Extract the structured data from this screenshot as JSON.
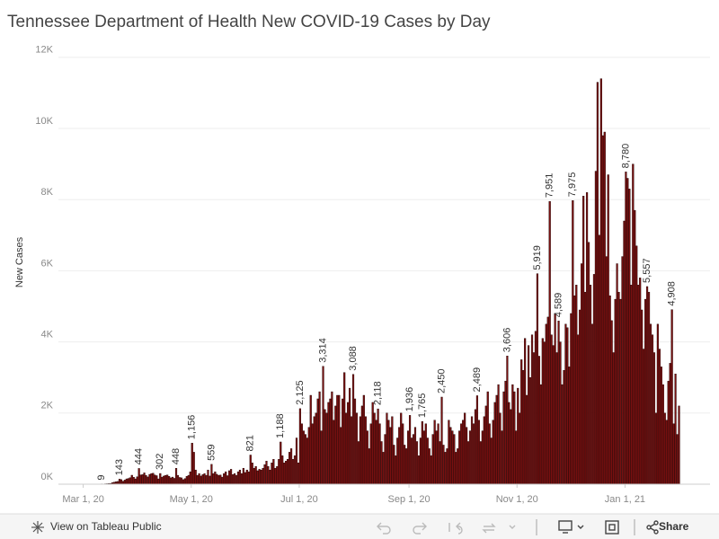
{
  "chart_data": {
    "type": "bar",
    "title": "Tennessee Department of Health New COVID-19 Cases by Day",
    "y_label": "New Cases",
    "color": "#7a1010",
    "x": [
      "2020-03-11",
      "2020-03-12",
      "2020-03-13",
      "2020-03-14",
      "2020-03-15",
      "2020-03-16",
      "2020-03-17",
      "2020-03-18",
      "2020-03-19",
      "2020-03-20",
      "2020-03-21",
      "2020-03-22",
      "2020-03-23",
      "2020-03-24",
      "2020-03-25",
      "2020-03-26",
      "2020-03-27",
      "2020-03-28",
      "2020-03-29",
      "2020-03-30",
      "2020-03-31",
      "2020-04-01",
      "2020-04-02",
      "2020-04-03",
      "2020-04-04",
      "2020-04-05",
      "2020-04-06",
      "2020-04-07",
      "2020-04-08",
      "2020-04-09",
      "2020-04-10",
      "2020-04-11",
      "2020-04-12",
      "2020-04-13",
      "2020-04-14",
      "2020-04-15",
      "2020-04-16",
      "2020-04-17",
      "2020-04-18",
      "2020-04-19",
      "2020-04-20",
      "2020-04-21",
      "2020-04-22",
      "2020-04-23",
      "2020-04-24",
      "2020-04-25",
      "2020-04-26",
      "2020-04-27",
      "2020-04-28",
      "2020-04-29",
      "2020-04-30",
      "2020-05-01",
      "2020-05-02",
      "2020-05-03",
      "2020-05-04",
      "2020-05-05",
      "2020-05-06",
      "2020-05-07",
      "2020-05-08",
      "2020-05-09",
      "2020-05-10",
      "2020-05-11",
      "2020-05-12",
      "2020-05-13",
      "2020-05-14",
      "2020-05-15",
      "2020-05-16",
      "2020-05-17",
      "2020-05-18",
      "2020-05-19",
      "2020-05-20",
      "2020-05-21",
      "2020-05-22",
      "2020-05-23",
      "2020-05-24",
      "2020-05-25",
      "2020-05-26",
      "2020-05-27",
      "2020-05-28",
      "2020-05-29",
      "2020-05-30",
      "2020-05-31",
      "2020-06-01",
      "2020-06-02",
      "2020-06-03",
      "2020-06-04",
      "2020-06-05",
      "2020-06-06",
      "2020-06-07",
      "2020-06-08",
      "2020-06-09",
      "2020-06-10",
      "2020-06-11",
      "2020-06-12",
      "2020-06-13",
      "2020-06-14",
      "2020-06-15",
      "2020-06-16",
      "2020-06-17",
      "2020-06-18",
      "2020-06-19",
      "2020-06-20",
      "2020-06-21",
      "2020-06-22",
      "2020-06-23",
      "2020-06-24",
      "2020-06-25",
      "2020-06-26",
      "2020-06-27",
      "2020-06-28",
      "2020-06-29",
      "2020-06-30",
      "2020-07-01",
      "2020-07-02",
      "2020-07-03",
      "2020-07-04",
      "2020-07-05",
      "2020-07-06",
      "2020-07-07",
      "2020-07-08",
      "2020-07-09",
      "2020-07-10",
      "2020-07-11",
      "2020-07-12",
      "2020-07-13",
      "2020-07-14",
      "2020-07-15",
      "2020-07-16",
      "2020-07-17",
      "2020-07-18",
      "2020-07-19",
      "2020-07-20",
      "2020-07-21",
      "2020-07-22",
      "2020-07-23",
      "2020-07-24",
      "2020-07-25",
      "2020-07-26",
      "2020-07-27",
      "2020-07-28",
      "2020-07-29",
      "2020-07-30",
      "2020-07-31",
      "2020-08-01",
      "2020-08-02",
      "2020-08-03",
      "2020-08-04",
      "2020-08-05",
      "2020-08-06",
      "2020-08-07",
      "2020-08-08",
      "2020-08-09",
      "2020-08-10",
      "2020-08-11",
      "2020-08-12",
      "2020-08-13",
      "2020-08-14",
      "2020-08-15",
      "2020-08-16",
      "2020-08-17",
      "2020-08-18",
      "2020-08-19",
      "2020-08-20",
      "2020-08-21",
      "2020-08-22",
      "2020-08-23",
      "2020-08-24",
      "2020-08-25",
      "2020-08-26",
      "2020-08-27",
      "2020-08-28",
      "2020-08-29",
      "2020-08-30",
      "2020-08-31",
      "2020-09-01",
      "2020-09-02",
      "2020-09-03",
      "2020-09-04",
      "2020-09-05",
      "2020-09-06",
      "2020-09-07",
      "2020-09-08",
      "2020-09-09",
      "2020-09-10",
      "2020-09-11",
      "2020-09-12",
      "2020-09-13",
      "2020-09-14",
      "2020-09-15",
      "2020-09-16",
      "2020-09-17",
      "2020-09-18",
      "2020-09-19",
      "2020-09-20",
      "2020-09-21",
      "2020-09-22",
      "2020-09-23",
      "2020-09-24",
      "2020-09-25",
      "2020-09-26",
      "2020-09-27",
      "2020-09-28",
      "2020-09-29",
      "2020-09-30",
      "2020-10-01",
      "2020-10-02",
      "2020-10-03",
      "2020-10-04",
      "2020-10-05",
      "2020-10-06",
      "2020-10-07",
      "2020-10-08",
      "2020-10-09",
      "2020-10-10",
      "2020-10-11",
      "2020-10-12",
      "2020-10-13",
      "2020-10-14",
      "2020-10-15",
      "2020-10-16",
      "2020-10-17",
      "2020-10-18",
      "2020-10-19",
      "2020-10-20",
      "2020-10-21",
      "2020-10-22",
      "2020-10-23",
      "2020-10-24",
      "2020-10-25",
      "2020-10-26",
      "2020-10-27",
      "2020-10-28",
      "2020-10-29",
      "2020-10-30",
      "2020-10-31",
      "2020-11-01",
      "2020-11-02",
      "2020-11-03",
      "2020-11-04",
      "2020-11-05",
      "2020-11-06",
      "2020-11-07",
      "2020-11-08",
      "2020-11-09",
      "2020-11-10",
      "2020-11-11",
      "2020-11-12",
      "2020-11-13",
      "2020-11-14",
      "2020-11-15",
      "2020-11-16",
      "2020-11-17",
      "2020-11-18",
      "2020-11-19",
      "2020-11-20",
      "2020-11-21",
      "2020-11-22",
      "2020-11-23",
      "2020-11-24",
      "2020-11-25",
      "2020-11-26",
      "2020-11-27",
      "2020-11-28",
      "2020-11-29",
      "2020-11-30",
      "2020-12-01",
      "2020-12-02",
      "2020-12-03",
      "2020-12-04",
      "2020-12-05",
      "2020-12-06",
      "2020-12-07",
      "2020-12-08",
      "2020-12-09",
      "2020-12-10",
      "2020-12-11",
      "2020-12-12",
      "2020-12-13",
      "2020-12-14",
      "2020-12-15",
      "2020-12-16",
      "2020-12-17",
      "2020-12-18",
      "2020-12-19",
      "2020-12-20",
      "2020-12-21",
      "2020-12-22",
      "2020-12-23",
      "2020-12-24",
      "2020-12-25",
      "2020-12-26",
      "2020-12-27",
      "2020-12-28",
      "2020-12-29",
      "2020-12-30",
      "2020-12-31",
      "2021-01-01",
      "2021-01-02",
      "2021-01-03",
      "2021-01-04",
      "2021-01-05",
      "2021-01-06",
      "2021-01-07",
      "2021-01-08",
      "2021-01-09",
      "2021-01-10",
      "2021-01-11",
      "2021-01-12",
      "2021-01-13",
      "2021-01-14",
      "2021-01-15",
      "2021-01-16",
      "2021-01-17",
      "2021-01-18",
      "2021-01-19",
      "2021-01-20",
      "2021-01-21",
      "2021-01-22",
      "2021-01-23",
      "2021-01-24",
      "2021-01-25",
      "2021-01-26",
      "2021-01-27",
      "2021-01-28",
      "2021-01-29",
      "2021-01-30",
      "2021-01-31"
    ],
    "values": [
      9,
      7,
      12,
      14,
      20,
      23,
      43,
      56,
      70,
      78,
      143,
      130,
      85,
      117,
      150,
      162,
      183,
      253,
      195,
      150,
      210,
      444,
      262,
      270,
      319,
      250,
      205,
      277,
      300,
      310,
      260,
      240,
      150,
      302,
      200,
      230,
      250,
      260,
      220,
      180,
      200,
      165,
      448,
      250,
      190,
      180,
      130,
      160,
      220,
      250,
      350,
      1156,
      900,
      400,
      250,
      300,
      230,
      270,
      300,
      250,
      400,
      230,
      559,
      300,
      350,
      280,
      250,
      260,
      200,
      300,
      350,
      240,
      380,
      420,
      270,
      300,
      250,
      350,
      400,
      300,
      450,
      330,
      400,
      350,
      821,
      600,
      450,
      500,
      380,
      420,
      400,
      450,
      550,
      650,
      500,
      400,
      600,
      700,
      450,
      500,
      700,
      1188,
      800,
      600,
      650,
      700,
      900,
      1000,
      700,
      800,
      1300,
      600,
      2125,
      1700,
      1500,
      1400,
      1300,
      1600,
      2500,
      1700,
      1900,
      2000,
      2400,
      2600,
      1500,
      3314,
      2100,
      2000,
      2300,
      2400,
      2600,
      1800,
      2200,
      2500,
      2500,
      1600,
      2400,
      3140,
      2000,
      2300,
      2700,
      1900,
      3088,
      2400,
      2000,
      1200,
      1900,
      2200,
      2500,
      1900,
      1500,
      1000,
      1700,
      2300,
      2000,
      1800,
      2118,
      1700,
      1200,
      900,
      1400,
      2000,
      1800,
      1600,
      1900,
      1100,
      800,
      1300,
      1600,
      2000,
      1700,
      1100,
      1000,
      1500,
      1936,
      1300,
      1400,
      1600,
      1200,
      800,
      1300,
      1765,
      1500,
      1700,
      1300,
      1000,
      800,
      1400,
      1800,
      1500,
      1700,
      1200,
      2450,
      1100,
      900,
      1000,
      1800,
      1600,
      1500,
      1400,
      900,
      1000,
      1500,
      1700,
      1800,
      2000,
      1600,
      1200,
      1500,
      1900,
      1700,
      2100,
      2489,
      1800,
      1200,
      1500,
      1900,
      2200,
      2600,
      1700,
      1300,
      1800,
      2300,
      2500,
      2800,
      2000,
      1500,
      2600,
      2900,
      3606,
      2300,
      2100,
      2800,
      2600,
      1500,
      2700,
      2000,
      3500,
      3200,
      4100,
      2500,
      3900,
      3000,
      4200,
      3700,
      4300,
      5919,
      3600,
      2800,
      4100,
      4000,
      4500,
      4700,
      7951,
      4200,
      3900,
      4800,
      3700,
      4589,
      4000,
      2800,
      3200,
      4500,
      4400,
      3300,
      4800,
      7975,
      5300,
      5600,
      4200,
      4900,
      6200,
      8100,
      5400,
      8200,
      6800,
      5600,
      4500,
      5900,
      8800,
      11300,
      7000,
      11400,
      9800,
      9900,
      6400,
      8700,
      5300,
      4600,
      3700,
      5200,
      6200,
      5400,
      5200,
      6400,
      7400,
      8780,
      8600,
      8300,
      5600,
      9000,
      7700,
      6700,
      5600,
      5800,
      4900,
      3800,
      5200,
      5557,
      5400,
      4500,
      4200,
      3700,
      2000,
      4500,
      3800,
      3300,
      2800,
      2000,
      1800,
      2900,
      3400,
      4908,
      1700,
      3100,
      1400,
      2200
    ],
    "value_labels": [
      "9",
      null,
      null,
      null,
      null,
      null,
      null,
      null,
      null,
      null,
      "143",
      null,
      null,
      null,
      null,
      null,
      null,
      null,
      null,
      null,
      null,
      "444",
      null,
      null,
      null,
      null,
      null,
      null,
      null,
      null,
      null,
      null,
      null,
      "302",
      null,
      null,
      null,
      null,
      null,
      null,
      null,
      null,
      "448",
      null,
      null,
      null,
      null,
      null,
      null,
      null,
      null,
      "1,156",
      null,
      null,
      null,
      null,
      null,
      null,
      null,
      null,
      null,
      null,
      "559",
      null,
      null,
      null,
      null,
      null,
      null,
      null,
      null,
      null,
      null,
      null,
      null,
      null,
      null,
      null,
      null,
      null,
      null,
      null,
      null,
      null,
      "821",
      null,
      null,
      null,
      null,
      null,
      null,
      null,
      null,
      null,
      null,
      null,
      null,
      null,
      null,
      null,
      null,
      "1,188",
      null,
      null,
      null,
      null,
      null,
      null,
      null,
      null,
      null,
      null,
      "2,125",
      null,
      null,
      null,
      null,
      null,
      null,
      null,
      null,
      null,
      null,
      null,
      null,
      "3,314",
      null,
      null,
      null,
      null,
      null,
      null,
      null,
      null,
      null,
      null,
      null,
      null,
      null,
      null,
      null,
      null,
      "3,088",
      null,
      null,
      null,
      null,
      null,
      null,
      null,
      null,
      null,
      null,
      null,
      null,
      null,
      "2,118",
      null,
      null,
      null,
      null,
      null,
      null,
      null,
      null,
      null,
      null,
      null,
      null,
      null,
      null,
      null,
      null,
      null,
      "1,936",
      null,
      null,
      null,
      null,
      null,
      null,
      "1,765",
      null,
      null,
      null,
      null,
      null,
      null,
      null,
      null,
      null,
      null,
      "2,450",
      null,
      null,
      null,
      null,
      null,
      null,
      null,
      null,
      null,
      null,
      null,
      null,
      null,
      null,
      null,
      null,
      null,
      null,
      null,
      "2,489",
      null,
      null,
      null,
      null,
      null,
      null,
      null,
      null,
      null,
      null,
      null,
      null,
      null,
      null,
      null,
      null,
      "3,606",
      null,
      null,
      null,
      null,
      null,
      null,
      null,
      null,
      null,
      null,
      null,
      null,
      null,
      null,
      null,
      null,
      "5,919",
      null,
      null,
      null,
      null,
      null,
      null,
      "7,951",
      null,
      null,
      null,
      null,
      "4,589",
      null,
      null,
      null,
      null,
      null,
      null,
      null,
      "7,975",
      null,
      null,
      null,
      null,
      null,
      null,
      null,
      null,
      null,
      null,
      null,
      null,
      null,
      null,
      null,
      null,
      null,
      null,
      null,
      null,
      null,
      null,
      null,
      null,
      null,
      null,
      null,
      null,
      null,
      "8,780",
      null,
      null,
      null,
      null,
      null,
      null,
      null,
      null,
      null,
      null,
      null,
      "5,557",
      null,
      null,
      null,
      null,
      null,
      null,
      null,
      null,
      null,
      null,
      null,
      null,
      null,
      "4,908",
      null,
      null,
      null,
      null
    ],
    "xlim": [
      "2020-02-16",
      "2021-02-18"
    ],
    "xticks": [
      {
        "value": "2020-03-01",
        "label": "Mar 1, 20"
      },
      {
        "value": "2020-05-01",
        "label": "May 1, 20"
      },
      {
        "value": "2020-07-01",
        "label": "Jul 1, 20"
      },
      {
        "value": "2020-09-01",
        "label": "Sep 1, 20"
      },
      {
        "value": "2020-11-01",
        "label": "Nov 1, 20"
      },
      {
        "value": "2021-01-01",
        "label": "Jan 1, 21"
      }
    ],
    "ylim": [
      0,
      12400
    ],
    "yticks": [
      {
        "value": 0,
        "label": "0K"
      },
      {
        "value": 2000,
        "label": "2K"
      },
      {
        "value": 4000,
        "label": "4K"
      },
      {
        "value": 6000,
        "label": "6K"
      },
      {
        "value": 8000,
        "label": "8K"
      },
      {
        "value": 10000,
        "label": "10K"
      },
      {
        "value": 12000,
        "label": "12K"
      }
    ],
    "grid": true
  },
  "toolbar": {
    "view": "View on Tableau Public",
    "share": "Share"
  }
}
